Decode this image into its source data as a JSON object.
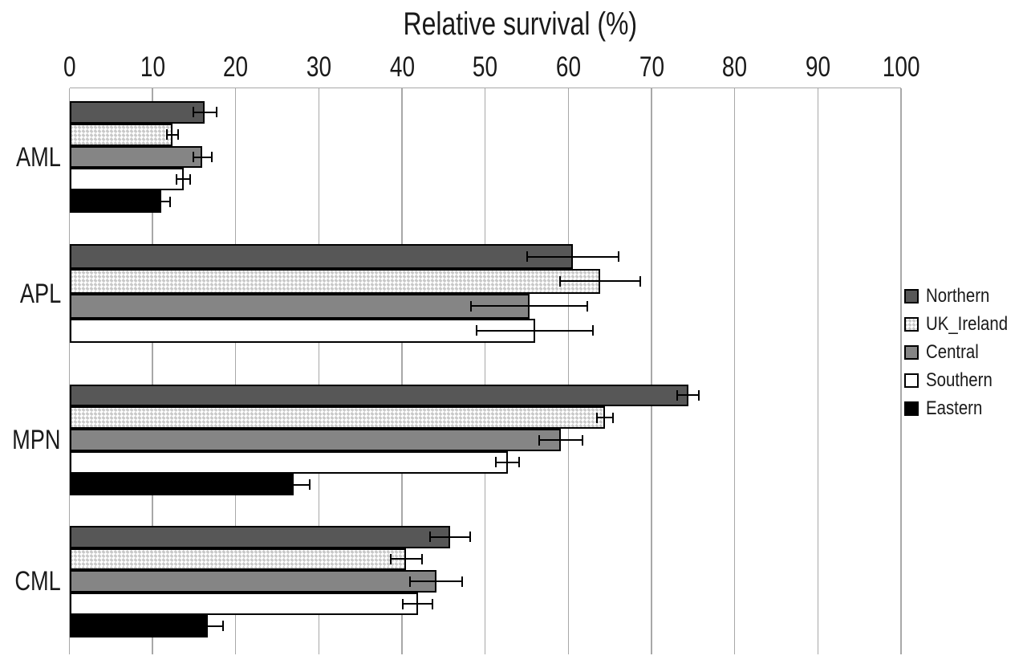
{
  "chart_data": {
    "type": "bar",
    "orientation": "horizontal",
    "title": "Relative survival (%)",
    "xlabel": "Relative survival (%)",
    "ylabel": "",
    "categories": [
      "AML",
      "APL",
      "MPN",
      "CML"
    ],
    "series": [
      {
        "name": "Northern",
        "color": "#575757",
        "pattern": false,
        "values": [
          16.3,
          60.5,
          74.4,
          45.8
        ],
        "errors": [
          1.4,
          5.5,
          1.3,
          2.4
        ]
      },
      {
        "name": "UK_Ireland",
        "color": "#ffffff",
        "pattern": true,
        "pattern_accent": "#c9c9c9",
        "values": [
          12.4,
          63.8,
          64.4,
          40.5
        ],
        "errors": [
          0.7,
          4.8,
          1.0,
          1.9
        ]
      },
      {
        "name": "Central",
        "color": "#858585",
        "pattern": false,
        "values": [
          16.0,
          55.3,
          59.1,
          44.1
        ],
        "errors": [
          1.1,
          7.0,
          2.6,
          3.1
        ]
      },
      {
        "name": "Southern",
        "color": "#ffffff",
        "pattern": false,
        "values": [
          13.7,
          56.0,
          52.7,
          41.9
        ],
        "errors": [
          0.8,
          7.0,
          1.4,
          1.8
        ]
      },
      {
        "name": "Eastern",
        "color": "#000000",
        "pattern": false,
        "values": [
          11.0,
          null,
          27.0,
          16.6
        ],
        "errors": [
          1.1,
          null,
          1.9,
          1.9
        ]
      }
    ],
    "x_ticks": [
      0,
      10,
      20,
      30,
      40,
      50,
      60,
      70,
      80,
      90,
      100
    ],
    "xlim": [
      0,
      100
    ],
    "grid": "vertical",
    "gridline_color": "#a8a8a8",
    "bar_border_color": "#000000",
    "legend_position": "right",
    "legend_entries": [
      "Northern",
      "UK_Ireland",
      "Central",
      "Southern",
      "Eastern"
    ]
  }
}
